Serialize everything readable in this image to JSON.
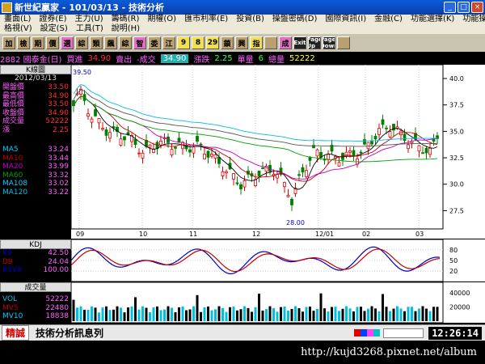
{
  "window": {
    "title": "新世紀贏家 - 101/03/13 - 技術分析",
    "min": "_",
    "max": "□",
    "close": "×"
  },
  "menu": {
    "row1": [
      "畫面(L)",
      "證券(E)",
      "主力(U)",
      "籌碼(R)",
      "期權(O)",
      "匯市利率(E)",
      "投資(B)",
      "操盤密碼(D)",
      "國際資訊(I)",
      "金融(C)",
      "功能選擇(K)",
      "功能操作(F)"
    ],
    "row2": [
      "格視(V)",
      "設定(S)",
      "工具(T)",
      "說明(H)"
    ]
  },
  "toolbar": [
    "加",
    "檢",
    "期",
    "價",
    "選",
    "綜",
    "類",
    "飆",
    "綜",
    "智",
    "委",
    "江",
    "9",
    "8",
    "29",
    "鎖",
    "興",
    "指",
    "",
    "成",
    "Exit",
    "Page Up",
    "Page Down",
    ""
  ],
  "info": {
    "stock": "2882 國泰金(日)",
    "buy_label": "買進",
    "buy": "34.90",
    "sell_label": "賣出",
    "change_label": "-成交",
    "last": "34.90",
    "chg_label": "漲跌",
    "chg": "2.25",
    "unit_label": "單量",
    "unit": "6",
    "total_label": "總量",
    "total": "52222"
  },
  "kpanel": {
    "title": "K線圖",
    "date": "2012/03/13",
    "rows": [
      {
        "label": "開盤價",
        "value": "33.50"
      },
      {
        "label": "最高價",
        "value": "34.90"
      },
      {
        "label": "最低價",
        "value": "33.50"
      },
      {
        "label": "收盤價",
        "value": "34.90"
      },
      {
        "label": "成交量",
        "value": "52222"
      },
      {
        "label": "漲",
        "value": "2.25"
      }
    ],
    "ma": [
      {
        "label": "MA5",
        "value": "33.24",
        "color": "#000000"
      },
      {
        "label": "MA10",
        "value": "33.44",
        "color": "#c00000"
      },
      {
        "label": "MA20",
        "value": "33.99",
        "color": "#c000c0"
      },
      {
        "label": "MA60",
        "value": "33.32",
        "color": "#00a000"
      },
      {
        "label": "MA108",
        "value": "33.02",
        "color": "#000000"
      },
      {
        "label": "MA120",
        "value": "33.22",
        "color": "#00c0e0"
      }
    ]
  },
  "kdpanel": {
    "title": "KDJ",
    "rows": [
      {
        "label": "K9",
        "value": "42.50",
        "color": "#0000c0"
      },
      {
        "label": "D9",
        "value": "24.04",
        "color": "#c00000"
      },
      {
        "label": "RSV9",
        "value": "100.00",
        "color": "#0000c0"
      }
    ]
  },
  "volpanel": {
    "title": "成交量",
    "rows": [
      {
        "label": "VOL",
        "value": "52222",
        "color": "#00c0e0"
      },
      {
        "label": "MV5",
        "value": "22480",
        "color": "#c00000"
      },
      {
        "label": "MV10",
        "value": "18838",
        "color": "#000000"
      }
    ]
  },
  "chart_data": {
    "type": "candlestick",
    "ylim": [
      26,
      41
    ],
    "y_ticks": [
      "40.0",
      "37.5",
      "35.0",
      "32.5",
      "30.0",
      "27.5"
    ],
    "x_ticks": [
      "09",
      "10",
      "11",
      "12",
      "12/01",
      "02",
      "03"
    ],
    "high_label": "39.50",
    "low_label": "28.00",
    "kd_ticks": [
      "80",
      "50",
      "20"
    ],
    "vol_ticks": [
      "40000",
      "20000"
    ]
  },
  "status": {
    "tag": "精誠",
    "message": "技術分析訊息列",
    "time": "12:26:14"
  },
  "url": "http://kujd3268.pixnet.net/album"
}
